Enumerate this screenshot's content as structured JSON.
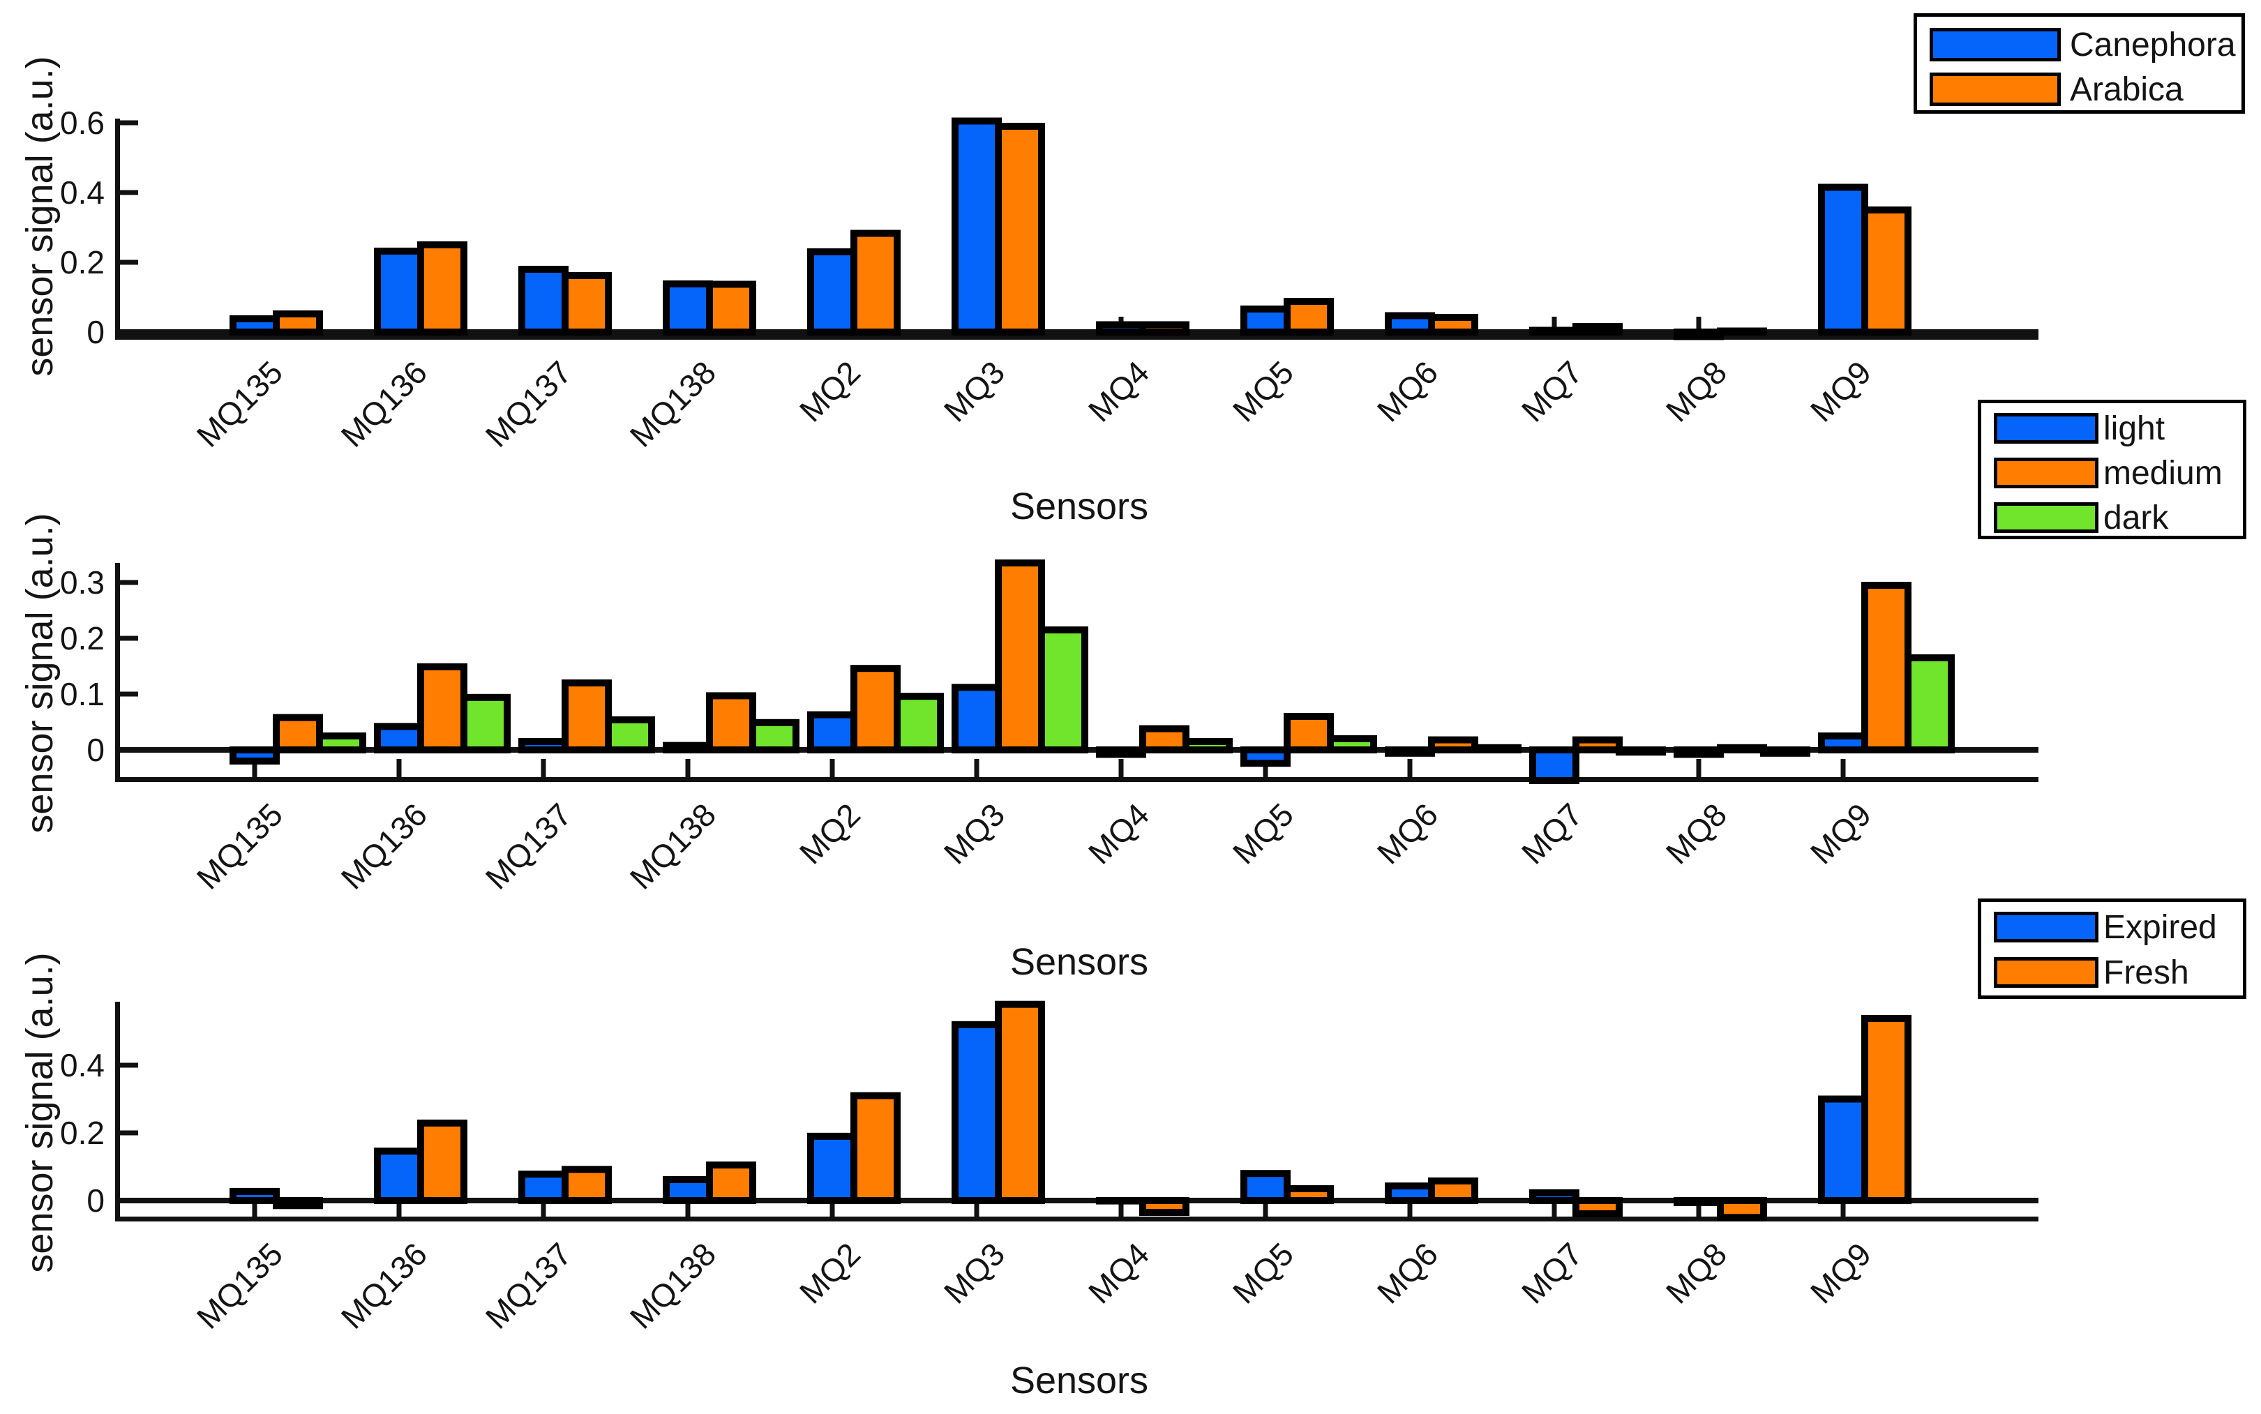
{
  "figure": {
    "background": "#ffffff"
  },
  "chart_data": [
    {
      "type": "bar",
      "title": "",
      "xlabel": "Sensors",
      "ylabel": "sensor signal (a.u.)",
      "categories": [
        "MQ135",
        "MQ136",
        "MQ137",
        "MQ138",
        "MQ2",
        "MQ3",
        "MQ4",
        "MQ5",
        "MQ6",
        "MQ7",
        "MQ8",
        "MQ9"
      ],
      "series": [
        {
          "name": "Canephora",
          "color": "#0564FA",
          "values": [
            0.038,
            0.232,
            0.18,
            0.138,
            0.23,
            0.605,
            0.021,
            0.066,
            0.047,
            0.005,
            -0.013,
            0.415
          ]
        },
        {
          "name": "Arabica",
          "color": "#FF7D01",
          "values": [
            0.052,
            0.25,
            0.162,
            0.137,
            0.283,
            0.59,
            0.021,
            0.088,
            0.042,
            0.016,
            0.003,
            0.35
          ]
        }
      ],
      "bar_edge_color": "#000000",
      "ytick_values": [
        0,
        0.2,
        0.4,
        0.6
      ],
      "ytick_labels": [
        "0",
        "0.2",
        "0.4",
        "0.6"
      ],
      "ylim": [
        -0.046,
        0.612
      ],
      "grid": false,
      "legend_position": "upper-right-outside"
    },
    {
      "type": "bar",
      "title": "",
      "xlabel": "Sensors",
      "ylabel": "sensor signal (a.u.)",
      "categories": [
        "MQ135",
        "MQ136",
        "MQ137",
        "MQ138",
        "MQ2",
        "MQ3",
        "MQ4",
        "MQ5",
        "MQ6",
        "MQ7",
        "MQ8",
        "MQ9"
      ],
      "series": [
        {
          "name": "light",
          "color": "#0564FA",
          "values": [
            -0.02,
            0.042,
            0.015,
            0.008,
            0.063,
            0.112,
            -0.008,
            -0.024,
            -0.006,
            -0.055,
            -0.008,
            0.025
          ]
        },
        {
          "name": "medium",
          "color": "#FF7D01",
          "values": [
            0.058,
            0.149,
            0.12,
            0.097,
            0.146,
            0.335,
            0.038,
            0.06,
            0.018,
            0.018,
            0.004,
            0.295
          ]
        },
        {
          "name": "dark",
          "color": "#70E52C",
          "values": [
            0.025,
            0.094,
            0.054,
            0.049,
            0.096,
            0.215,
            0.015,
            0.02,
            0.004,
            -0.004,
            -0.006,
            0.165
          ]
        }
      ],
      "bar_edge_color": "#000000",
      "ytick_values": [
        0,
        0.1,
        0.2,
        0.3
      ],
      "ytick_labels": [
        "0",
        "0.1",
        "0.2",
        "0.3"
      ],
      "ylim": [
        -0.0575,
        0.335
      ],
      "grid": false,
      "legend_position": "upper-right-outside"
    },
    {
      "type": "bar",
      "title": "",
      "xlabel": "Sensors",
      "ylabel": "sensor signal (a.u.)",
      "categories": [
        "MQ135",
        "MQ136",
        "MQ137",
        "MQ138",
        "MQ2",
        "MQ3",
        "MQ4",
        "MQ5",
        "MQ6",
        "MQ7",
        "MQ8",
        "MQ9"
      ],
      "series": [
        {
          "name": "Expired",
          "color": "#0564FA",
          "values": [
            0.027,
            0.146,
            0.078,
            0.062,
            0.19,
            0.52,
            -0.001,
            0.08,
            0.043,
            0.023,
            -0.006,
            0.3
          ]
        },
        {
          "name": "Fresh",
          "color": "#FF7D01",
          "values": [
            -0.015,
            0.229,
            0.092,
            0.105,
            0.31,
            0.58,
            -0.035,
            0.035,
            0.058,
            -0.039,
            -0.05,
            0.538
          ]
        }
      ],
      "bar_edge_color": "#000000",
      "ytick_values": [
        0,
        0.2,
        0.4
      ],
      "ytick_labels": [
        "0",
        "0.2",
        "0.4"
      ],
      "ylim": [
        -0.062,
        0.588
      ],
      "grid": false,
      "legend_position": "upper-right-outside"
    }
  ]
}
